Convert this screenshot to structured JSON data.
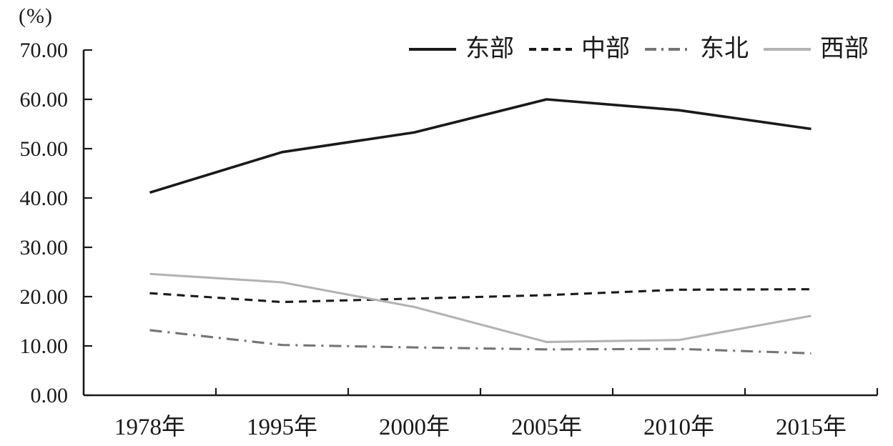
{
  "chart_data": {
    "type": "line",
    "title": "",
    "ylabel": "(%)",
    "xlabel": "",
    "grid": false,
    "legend_position": "top",
    "ylim": [
      0,
      70
    ],
    "y_tick_labels": [
      "0.00",
      "10.00",
      "20.00",
      "30.00",
      "40.00",
      "50.00",
      "60.00",
      "70.00"
    ],
    "y_tick_values": [
      0,
      10,
      20,
      30,
      40,
      50,
      60,
      70
    ],
    "categories": [
      "1978年",
      "1995年",
      "2000年",
      "2005年",
      "2010年",
      "2015年"
    ],
    "series": [
      {
        "key": "east",
        "name": "东部",
        "color": "#1a1a1a",
        "style": "solid",
        "values": [
          41.1,
          49.3,
          53.3,
          60.0,
          57.8,
          54.0
        ]
      },
      {
        "key": "central",
        "name": "中部",
        "color": "#1a1a1a",
        "style": "dashed",
        "values": [
          20.7,
          18.9,
          19.6,
          20.3,
          21.4,
          21.5
        ]
      },
      {
        "key": "northeast",
        "name": "东北",
        "color": "#757575",
        "style": "dashdot",
        "values": [
          13.2,
          10.2,
          9.7,
          9.3,
          9.4,
          8.5
        ]
      },
      {
        "key": "west",
        "name": "西部",
        "color": "#b3b3b3",
        "style": "solid",
        "values": [
          24.6,
          22.9,
          17.9,
          10.8,
          11.2,
          16.1
        ]
      }
    ],
    "axis_color": "#1a1a1a"
  }
}
